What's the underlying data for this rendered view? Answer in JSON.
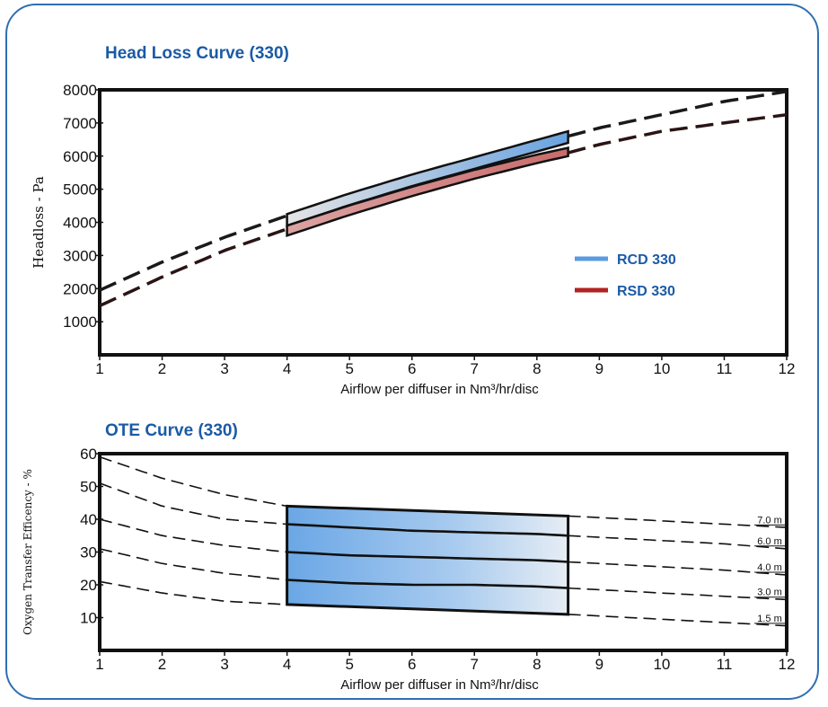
{
  "chart_data": [
    {
      "type": "line",
      "title": "Head Loss Curve (330)",
      "xlabel": "Airflow per diffuser in Nm³/hr/disc",
      "ylabel": "Headloss - Pa",
      "xlim": [
        1,
        12
      ],
      "ylim": [
        0,
        8000
      ],
      "x_ticks": [
        "1",
        "2",
        "3",
        "4",
        "5",
        "6",
        "7",
        "8",
        "9",
        "10",
        "11",
        "12"
      ],
      "y_ticks": [
        "1000",
        "2000",
        "3000",
        "4000",
        "5000",
        "6000",
        "7000",
        "8000"
      ],
      "grid": false,
      "legend_position": "right",
      "series": [
        {
          "name": "RCD 330",
          "color": "#5b9be0",
          "style": "dashed curve with shaded band from 4 to 8.5",
          "x": [
            1,
            2,
            3,
            4,
            5,
            6,
            7,
            8,
            8.5,
            9,
            10,
            11,
            12
          ],
          "values": [
            1950,
            2800,
            3550,
            4200,
            4800,
            5350,
            5850,
            6350,
            6600,
            6850,
            7250,
            7650,
            7950
          ],
          "band": {
            "x": [
              4,
              8.5
            ],
            "upper": [
              4250,
              6750
            ],
            "lower": [
              3900,
              6400
            ]
          }
        },
        {
          "name": "RSD 330",
          "color": "#b22222",
          "style": "dashed curve with shaded band from 4 to 8.5",
          "x": [
            1,
            2,
            3,
            4,
            5,
            6,
            7,
            8,
            8.5,
            9,
            10,
            11,
            12
          ],
          "values": [
            1480,
            2350,
            3150,
            3800,
            4400,
            4950,
            5450,
            5900,
            6100,
            6350,
            6750,
            7000,
            7250
          ],
          "band": {
            "x": [
              4,
              8.5
            ],
            "upper": [
              3900,
              6250
            ],
            "lower": [
              3600,
              6000
            ]
          }
        }
      ]
    },
    {
      "type": "line",
      "title": "OTE Curve (330)",
      "xlabel": "Airflow per diffuser in Nm³/hr/disc",
      "ylabel": "Oxygen Transfer Efficency - %",
      "xlim": [
        1,
        12
      ],
      "ylim": [
        0,
        60
      ],
      "x_ticks": [
        "1",
        "2",
        "3",
        "4",
        "5",
        "6",
        "7",
        "8",
        "9",
        "10",
        "11",
        "12"
      ],
      "y_ticks": [
        "10",
        "20",
        "30",
        "40",
        "50",
        "60"
      ],
      "grid": false,
      "band": {
        "x": [
          4,
          8.5
        ],
        "upper": [
          44,
          41
        ],
        "lower": [
          14,
          11
        ]
      },
      "series": [
        {
          "name": "7.0 m",
          "x": [
            1,
            2,
            3,
            4,
            5,
            6,
            7,
            8,
            8.5,
            9,
            10,
            11,
            12
          ],
          "values": [
            59,
            52.5,
            47.5,
            44,
            43.5,
            42.5,
            42,
            41.5,
            41,
            40.5,
            39.5,
            38.5,
            37.5
          ]
        },
        {
          "name": "6.0 m",
          "x": [
            1,
            2,
            3,
            4,
            5,
            6,
            7,
            8,
            8.5,
            9,
            10,
            11,
            12
          ],
          "values": [
            51,
            44,
            40,
            38.5,
            37.5,
            36.5,
            36,
            35.5,
            35,
            34.5,
            33.5,
            32.5,
            31
          ]
        },
        {
          "name": "4.0 m",
          "x": [
            1,
            2,
            3,
            4,
            5,
            6,
            7,
            8,
            8.5,
            9,
            10,
            11,
            12
          ],
          "values": [
            40,
            35,
            32,
            30,
            29,
            28.5,
            28,
            27.5,
            27,
            26.5,
            25.5,
            24.5,
            23
          ]
        },
        {
          "name": "3.0 m",
          "x": [
            1,
            2,
            3,
            4,
            5,
            6,
            7,
            8,
            8.5,
            9,
            10,
            11,
            12
          ],
          "values": [
            31,
            26.5,
            23.5,
            21.5,
            20.5,
            20,
            20,
            19.5,
            19,
            18.5,
            17.5,
            16.5,
            15.5
          ]
        },
        {
          "name": "1.5 m",
          "x": [
            1,
            2,
            3,
            4,
            5,
            6,
            7,
            8,
            8.5,
            9,
            10,
            11,
            12
          ],
          "values": [
            21,
            17.5,
            15,
            14,
            13.5,
            13,
            12.5,
            12,
            11,
            10.5,
            9.5,
            8.5,
            7.5
          ]
        }
      ]
    }
  ]
}
